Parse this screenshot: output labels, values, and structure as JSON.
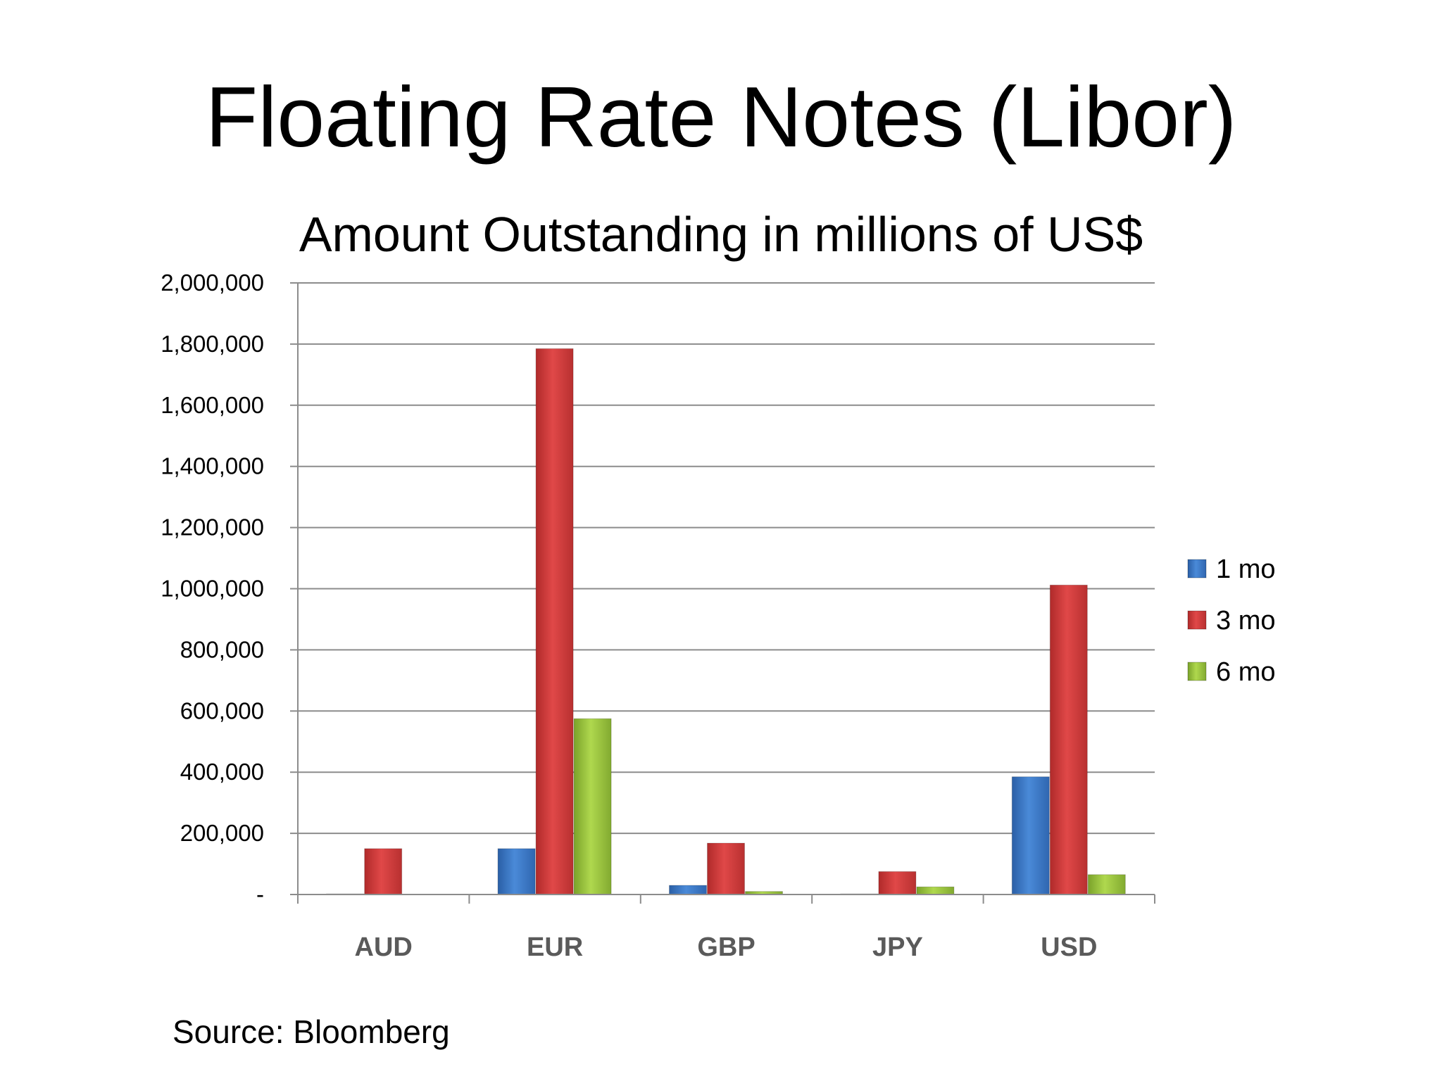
{
  "slide": {
    "title": "Floating Rate Notes (Libor)",
    "source": "Source: Bloomberg"
  },
  "chart_data": {
    "type": "bar",
    "title": "Amount Outstanding in millions of US$",
    "xlabel": "",
    "ylabel": "",
    "categories": [
      "AUD",
      "EUR",
      "GBP",
      "JPY",
      "USD"
    ],
    "series": [
      {
        "name": "1 mo",
        "color": "#3a78c8",
        "values": [
          2000,
          150000,
          30000,
          1000,
          385000
        ]
      },
      {
        "name": "3 mo",
        "color": "#d33a3a",
        "values": [
          150000,
          1785000,
          168000,
          75000,
          1012000
        ]
      },
      {
        "name": "6 mo",
        "color": "#9ac23c",
        "values": [
          0,
          575000,
          10000,
          25000,
          65000
        ]
      }
    ],
    "ylim": [
      0,
      2000000
    ],
    "yticks": [
      0,
      200000,
      400000,
      600000,
      800000,
      1000000,
      1200000,
      1400000,
      1600000,
      1800000,
      2000000
    ],
    "ytick_labels": [
      "-",
      "200,000",
      "400,000",
      "600,000",
      "800,000",
      "1,000,000",
      "1,200,000",
      "1,400,000",
      "1,600,000",
      "1,800,000",
      "2,000,000"
    ],
    "grid": true,
    "legend_position": "right"
  }
}
